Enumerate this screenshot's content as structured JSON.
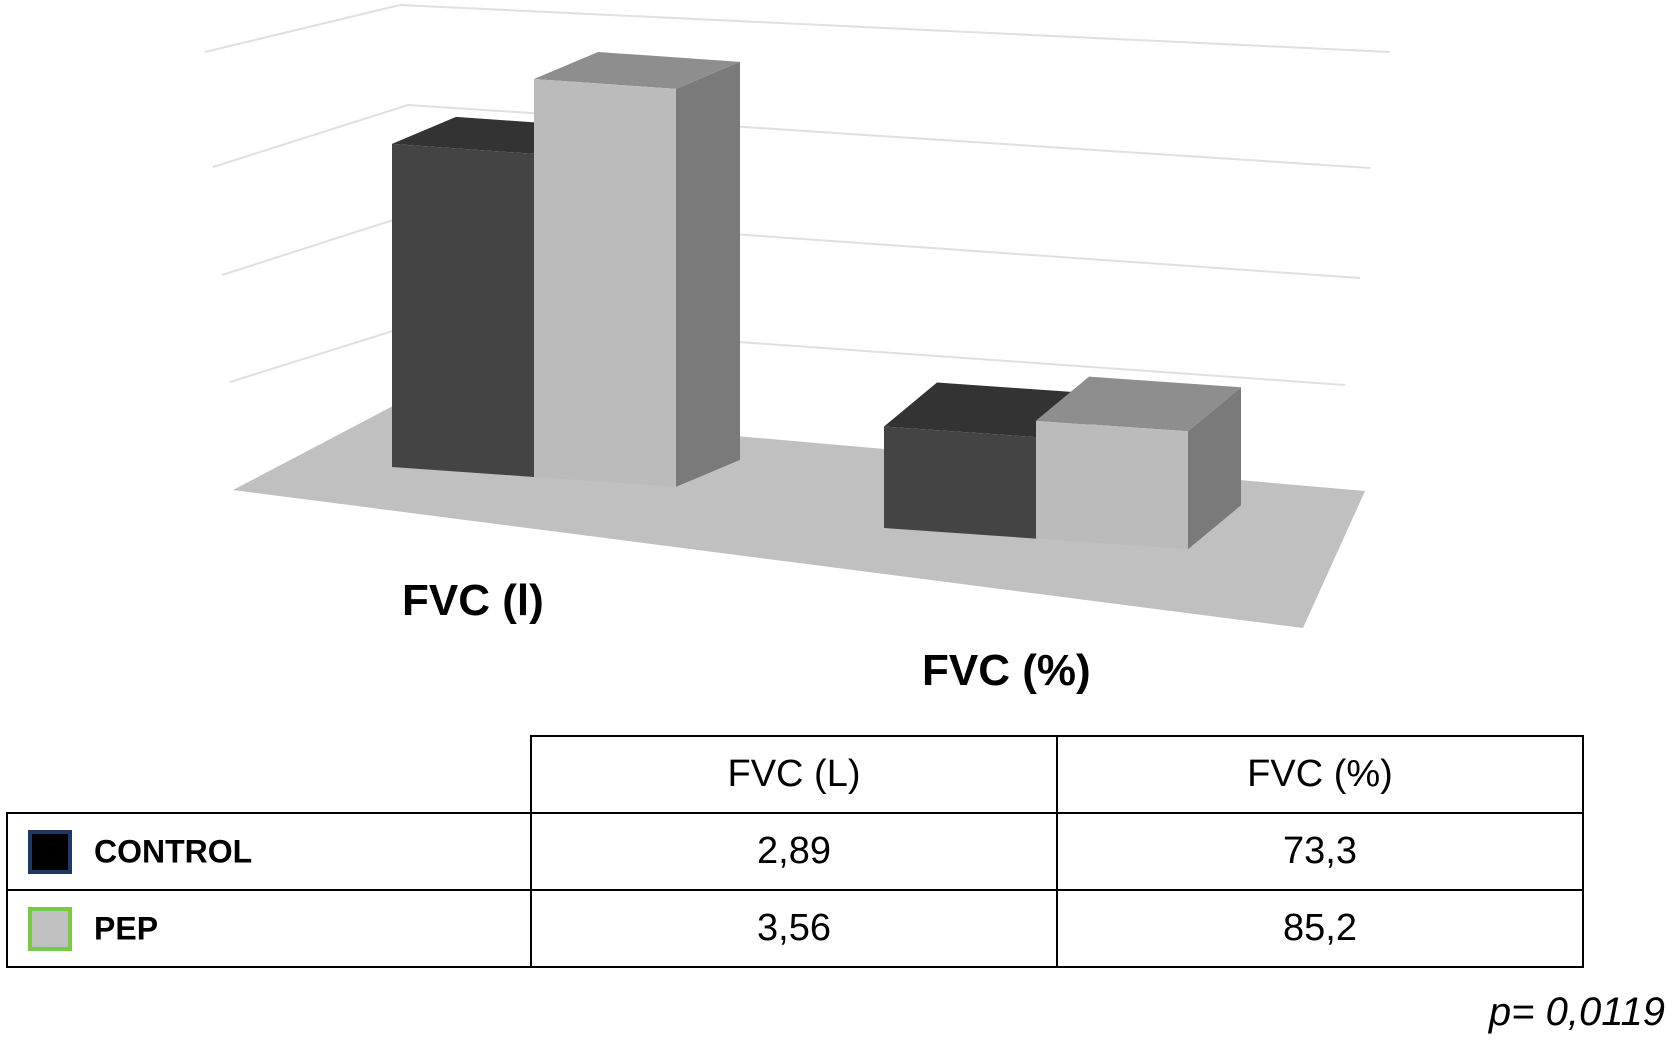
{
  "chart_data": {
    "type": "bar",
    "categories": [
      "FVC (l)",
      "FVC (%)"
    ],
    "series": [
      {
        "name": "CONTROL",
        "values": [
          2.89,
          73.3
        ]
      },
      {
        "name": "PEP",
        "values": [
          3.56,
          85.2
        ]
      }
    ],
    "xlabel": "",
    "ylabel": "",
    "grid": true,
    "legend": "table below chart"
  },
  "colors": {
    "control_front": "#444444",
    "control_top": "#333333",
    "pep_front": "#bbbbbb",
    "pep_side": "#7a7a7a",
    "pep_top": "#8e8e8e",
    "floor": "#c0c0c0",
    "gridline": "#e0e0e0",
    "control_swatch_border": "#1f3864",
    "control_swatch_fill": "#000000",
    "pep_swatch_border": "#7ac943",
    "pep_swatch_fill": "#c0c0c0"
  },
  "table": {
    "headers": [
      "FVC (L)",
      "FVC (%)"
    ],
    "rows": [
      {
        "series": "CONTROL",
        "values": [
          "2,89",
          "73,3"
        ]
      },
      {
        "series": "PEP",
        "values": [
          "3,56",
          "85,2"
        ]
      }
    ]
  },
  "p_value": "p= 0,0119"
}
